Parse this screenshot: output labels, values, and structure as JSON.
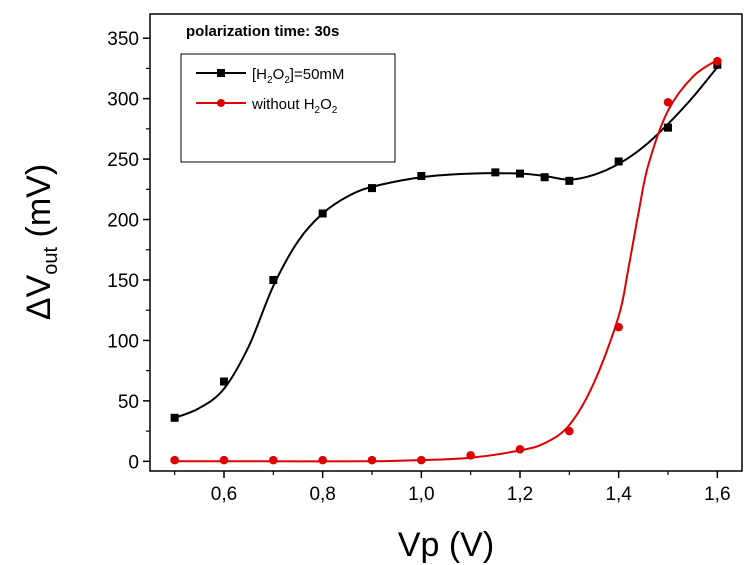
{
  "chart_data": {
    "type": "scatter",
    "annotation": "polarization time: 30s",
    "xlabel": "Vp (V)",
    "ylabel": {
      "prefix": "ΔV",
      "sub": "out",
      "suffix": " (mV)"
    },
    "xlim": [
      0.45,
      1.65
    ],
    "ylim": [
      -8,
      370
    ],
    "x_ticks": [
      {
        "v": 0.5,
        "label": ""
      },
      {
        "v": 0.6,
        "label": "0,6"
      },
      {
        "v": 0.7,
        "label": ""
      },
      {
        "v": 0.8,
        "label": "0,8"
      },
      {
        "v": 0.9,
        "label": ""
      },
      {
        "v": 1.0,
        "label": "1,0"
      },
      {
        "v": 1.1,
        "label": ""
      },
      {
        "v": 1.2,
        "label": "1,2"
      },
      {
        "v": 1.3,
        "label": ""
      },
      {
        "v": 1.4,
        "label": "1,4"
      },
      {
        "v": 1.5,
        "label": ""
      },
      {
        "v": 1.6,
        "label": "1,6"
      }
    ],
    "y_ticks": [
      {
        "v": 0,
        "label": "0"
      },
      {
        "v": 50,
        "label": "50"
      },
      {
        "v": 100,
        "label": "100"
      },
      {
        "v": 150,
        "label": "150"
      },
      {
        "v": 200,
        "label": "200"
      },
      {
        "v": 250,
        "label": "250"
      },
      {
        "v": 300,
        "label": "300"
      },
      {
        "v": 350,
        "label": "350"
      }
    ],
    "legend_position": "top-left",
    "series": [
      {
        "name": "[H2O2]=50mM",
        "legend": {
          "parts": [
            "[H",
            "2",
            "O",
            "2",
            "]=50mM"
          ]
        },
        "color": "#000000",
        "marker": "square",
        "x": [
          0.5,
          0.6,
          0.7,
          0.8,
          0.9,
          1.0,
          1.15,
          1.2,
          1.25,
          1.3,
          1.4,
          1.5,
          1.6
        ],
        "y": [
          36,
          66,
          150,
          205,
          226,
          236,
          239,
          238,
          235,
          232,
          248,
          276,
          328
        ],
        "fit": [
          [
            0.5,
            36
          ],
          [
            0.55,
            44
          ],
          [
            0.6,
            60
          ],
          [
            0.65,
            95
          ],
          [
            0.7,
            145
          ],
          [
            0.75,
            182
          ],
          [
            0.8,
            205
          ],
          [
            0.85,
            219
          ],
          [
            0.9,
            227
          ],
          [
            1.0,
            235
          ],
          [
            1.1,
            238
          ],
          [
            1.2,
            238
          ],
          [
            1.25,
            236
          ],
          [
            1.3,
            233
          ],
          [
            1.35,
            237
          ],
          [
            1.4,
            246
          ],
          [
            1.45,
            260
          ],
          [
            1.5,
            279
          ],
          [
            1.55,
            301
          ],
          [
            1.6,
            326
          ]
        ]
      },
      {
        "name": "without H2O2",
        "legend": {
          "parts": [
            "without H",
            "2",
            "O",
            "2",
            ""
          ]
        },
        "color": "#dd0000",
        "marker": "circle",
        "x": [
          0.5,
          0.6,
          0.7,
          0.8,
          0.9,
          1.0,
          1.1,
          1.2,
          1.3,
          1.4,
          1.5,
          1.6
        ],
        "y": [
          1,
          1,
          1,
          1,
          1,
          1,
          5,
          10,
          25,
          111,
          297,
          331
        ],
        "fit": [
          [
            0.5,
            0
          ],
          [
            0.7,
            0
          ],
          [
            0.9,
            0
          ],
          [
            1.0,
            1
          ],
          [
            1.1,
            3
          ],
          [
            1.2,
            9
          ],
          [
            1.25,
            15
          ],
          [
            1.3,
            30
          ],
          [
            1.35,
            65
          ],
          [
            1.4,
            120
          ],
          [
            1.42,
            160
          ],
          [
            1.44,
            205
          ],
          [
            1.46,
            245
          ],
          [
            1.5,
            290
          ],
          [
            1.55,
            318
          ],
          [
            1.6,
            332
          ]
        ]
      }
    ]
  }
}
